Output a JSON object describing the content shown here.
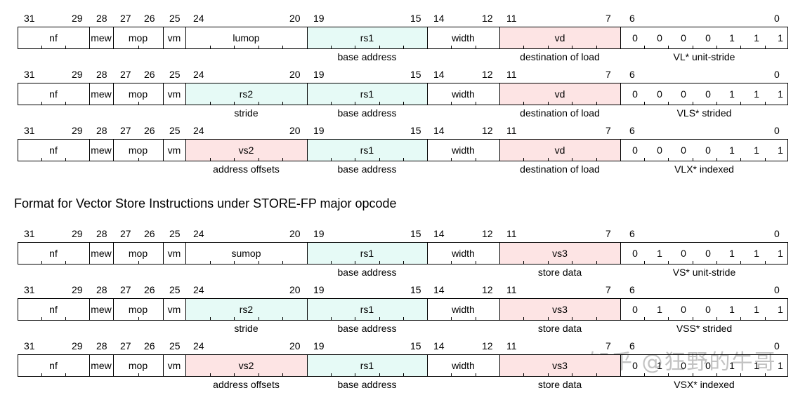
{
  "colors": {
    "green": "#e6faf6",
    "red": "#fde4e4",
    "white": "#ffffff",
    "border": "#000000"
  },
  "bit_labels": [
    "31",
    "29",
    "28",
    "27",
    "26",
    "25",
    "24",
    "20",
    "19",
    "15",
    "14",
    "12",
    "11",
    "7",
    "6",
    "0"
  ],
  "section_title": "Format for Vector Store Instructions under STORE-FP major opcode",
  "watermark": "知乎 @狂野的牛哥",
  "rows": [
    {
      "fields": [
        {
          "label": "nf",
          "color": "white"
        },
        {
          "label": "mew",
          "color": "white"
        },
        {
          "label": "mop",
          "color": "white"
        },
        {
          "label": "vm",
          "color": "white"
        },
        {
          "label": "lumop",
          "color": "white"
        },
        {
          "label": "rs1",
          "color": "green"
        },
        {
          "label": "width",
          "color": "white"
        },
        {
          "label": "vd",
          "color": "red"
        }
      ],
      "opcode": [
        "0",
        "0",
        "0",
        "0",
        "1",
        "1",
        "1"
      ],
      "descs": {
        "f4": "",
        "f5": "base address",
        "f7": "destination of load",
        "op": "VL* unit-stride"
      }
    },
    {
      "fields": [
        {
          "label": "nf",
          "color": "white"
        },
        {
          "label": "mew",
          "color": "white"
        },
        {
          "label": "mop",
          "color": "white"
        },
        {
          "label": "vm",
          "color": "white"
        },
        {
          "label": "rs2",
          "color": "green"
        },
        {
          "label": "rs1",
          "color": "green"
        },
        {
          "label": "width",
          "color": "white"
        },
        {
          "label": "vd",
          "color": "red"
        }
      ],
      "opcode": [
        "0",
        "0",
        "0",
        "0",
        "1",
        "1",
        "1"
      ],
      "descs": {
        "f4": "stride",
        "f5": "base address",
        "f7": "destination of load",
        "op": "VLS* strided"
      }
    },
    {
      "fields": [
        {
          "label": "nf",
          "color": "white"
        },
        {
          "label": "mew",
          "color": "white"
        },
        {
          "label": "mop",
          "color": "white"
        },
        {
          "label": "vm",
          "color": "white"
        },
        {
          "label": "vs2",
          "color": "red"
        },
        {
          "label": "rs1",
          "color": "green"
        },
        {
          "label": "width",
          "color": "white"
        },
        {
          "label": "vd",
          "color": "red"
        }
      ],
      "opcode": [
        "0",
        "0",
        "0",
        "0",
        "1",
        "1",
        "1"
      ],
      "descs": {
        "f4": "address offsets",
        "f5": "base address",
        "f7": "destination of load",
        "op": "VLX* indexed"
      }
    },
    {
      "fields": [
        {
          "label": "nf",
          "color": "white"
        },
        {
          "label": "mew",
          "color": "white"
        },
        {
          "label": "mop",
          "color": "white"
        },
        {
          "label": "vm",
          "color": "white"
        },
        {
          "label": "sumop",
          "color": "white"
        },
        {
          "label": "rs1",
          "color": "green"
        },
        {
          "label": "width",
          "color": "white"
        },
        {
          "label": "vs3",
          "color": "red"
        }
      ],
      "opcode": [
        "0",
        "1",
        "0",
        "0",
        "1",
        "1",
        "1"
      ],
      "descs": {
        "f4": "",
        "f5": "base address",
        "f7": "store data",
        "op": "VS* unit-stride"
      }
    },
    {
      "fields": [
        {
          "label": "nf",
          "color": "white"
        },
        {
          "label": "mew",
          "color": "white"
        },
        {
          "label": "mop",
          "color": "white"
        },
        {
          "label": "vm",
          "color": "white"
        },
        {
          "label": "rs2",
          "color": "green"
        },
        {
          "label": "rs1",
          "color": "green"
        },
        {
          "label": "width",
          "color": "white"
        },
        {
          "label": "vs3",
          "color": "red"
        }
      ],
      "opcode": [
        "0",
        "1",
        "0",
        "0",
        "1",
        "1",
        "1"
      ],
      "descs": {
        "f4": "stride",
        "f5": "base address",
        "f7": "store data",
        "op": "VSS* strided"
      }
    },
    {
      "fields": [
        {
          "label": "nf",
          "color": "white"
        },
        {
          "label": "mew",
          "color": "white"
        },
        {
          "label": "mop",
          "color": "white"
        },
        {
          "label": "vm",
          "color": "white"
        },
        {
          "label": "vs2",
          "color": "red"
        },
        {
          "label": "rs1",
          "color": "green"
        },
        {
          "label": "width",
          "color": "white"
        },
        {
          "label": "vs3",
          "color": "red"
        }
      ],
      "opcode": [
        "0",
        "1",
        "0",
        "0",
        "1",
        "1",
        "1"
      ],
      "descs": {
        "f4": "address offsets",
        "f5": "base address",
        "f7": "store data",
        "op": "VSX* indexed"
      }
    }
  ]
}
